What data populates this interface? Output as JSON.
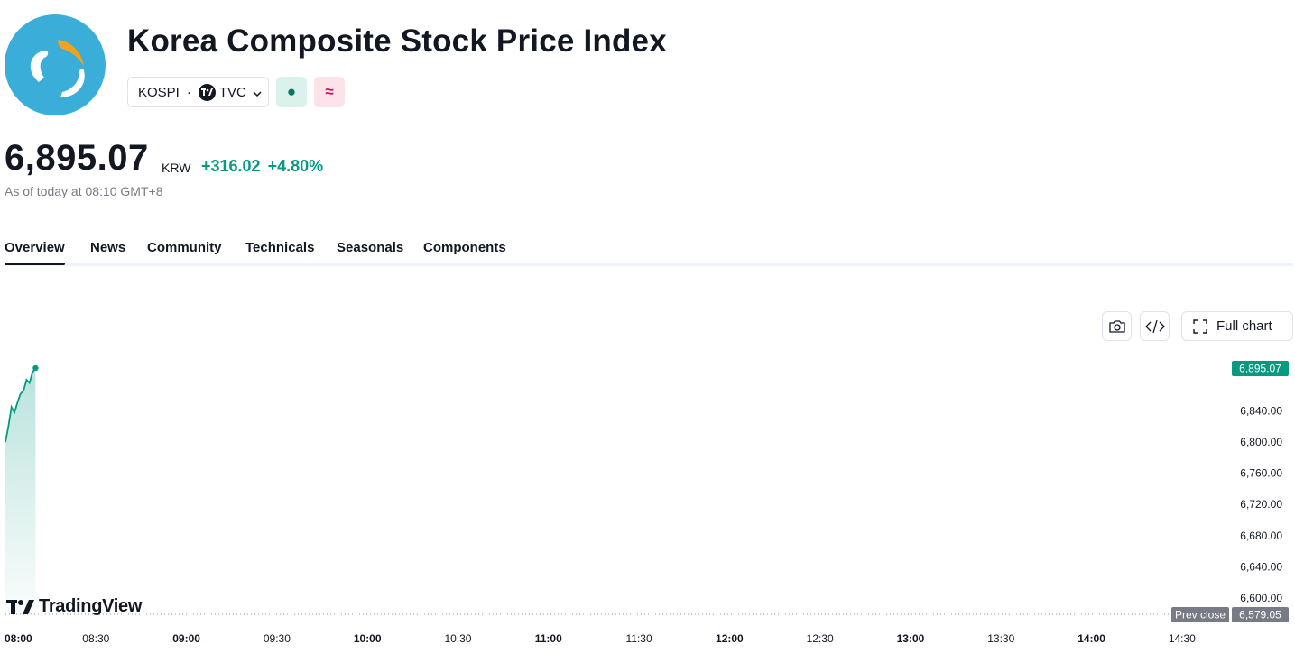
{
  "header": {
    "title": "Korea Composite Stock Price Index",
    "symbol": "KOSPI",
    "separator": "·",
    "exchange": "TVC",
    "logo_icon": "kospi-logo",
    "market_status_icon": "market-open-dot-icon",
    "market_status_glyph": "●",
    "delayed_icon": "approx-icon",
    "delayed_glyph": "≈"
  },
  "quote": {
    "price": "6,895.07",
    "currency": "KRW",
    "change": "+316.02",
    "change_percent": "+4.80%",
    "as_of": "As of today at 08:10 GMT+8"
  },
  "tabs": [
    {
      "label": "Overview",
      "active": true
    },
    {
      "label": "News"
    },
    {
      "label": "Community"
    },
    {
      "label": "Technicals"
    },
    {
      "label": "Seasonals"
    },
    {
      "label": "Components"
    }
  ],
  "toolbar": {
    "snapshot_icon": "camera-icon",
    "embed_icon": "code-icon",
    "full_chart_label": "Full chart",
    "full_chart_icon": "expand-icon"
  },
  "watermark": "TradingView",
  "colors": {
    "accent_green": "#089981",
    "text": "#131722",
    "muted": "#787b86",
    "prev_close_badge": "#787b86"
  },
  "chart_data": {
    "type": "area",
    "x": [
      "08:00",
      "08:01",
      "08:02",
      "08:03",
      "08:04",
      "08:05",
      "08:06",
      "08:07",
      "08:08",
      "08:09",
      "08:10"
    ],
    "values": [
      6800,
      6820,
      6845,
      6838,
      6851,
      6862,
      6866,
      6880,
      6876,
      6890,
      6895.07
    ],
    "ylim": [
      6579.05,
      6902
    ],
    "y_ticks": [
      "6,840.00",
      "6,800.00",
      "6,760.00",
      "6,720.00",
      "6,680.00",
      "6,640.00",
      "6,600.00"
    ],
    "x_ticks": [
      "08:00",
      "08:30",
      "09:00",
      "09:30",
      "10:00",
      "10:30",
      "11:00",
      "11:30",
      "12:00",
      "12:30",
      "13:00",
      "13:30",
      "14:00",
      "14:30"
    ],
    "bold_x_ticks": [
      "08:00",
      "09:00",
      "10:00",
      "11:00",
      "12:00",
      "13:00",
      "14:00"
    ],
    "last_price_label": "6,895.07",
    "prev_close_label": "Prev close",
    "prev_close_value": "6,579.05",
    "prev_close": 6579.05,
    "session": [
      "08:00",
      "14:45"
    ],
    "line_color": "#089981"
  }
}
